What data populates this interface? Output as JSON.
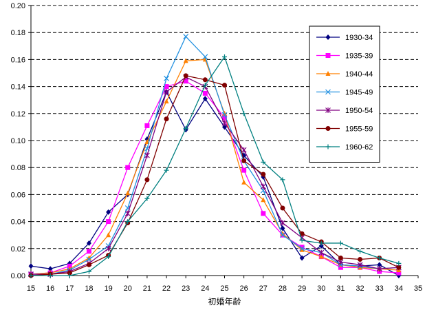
{
  "chart_data": {
    "type": "line",
    "title": "",
    "xlabel": "初婚年齢",
    "ylabel": "",
    "xlim": [
      15,
      35
    ],
    "ylim": [
      0,
      0.2
    ],
    "x_ticks": [
      "15",
      "16",
      "17",
      "18",
      "19",
      "20",
      "21",
      "22",
      "23",
      "24",
      "25",
      "26",
      "27",
      "28",
      "29",
      "30",
      "31",
      "32",
      "33",
      "34",
      "35"
    ],
    "y_ticks": [
      "0.00",
      "0.02",
      "0.04",
      "0.06",
      "0.08",
      "0.10",
      "0.12",
      "0.14",
      "0.16",
      "0.18",
      "0.20"
    ],
    "grid": "horizontal dashed",
    "legend_position": "right",
    "x": [
      15,
      16,
      17,
      18,
      19,
      20,
      21,
      22,
      23,
      24,
      25,
      26,
      27,
      28,
      29,
      30,
      31,
      32,
      33,
      34
    ],
    "series": [
      {
        "name": "1930-34",
        "color": "#000080",
        "marker": "diamond",
        "values": [
          0.007,
          0.005,
          0.009,
          0.024,
          0.047,
          0.06,
          0.101,
          0.136,
          0.108,
          0.131,
          0.11,
          0.089,
          0.073,
          0.035,
          0.013,
          0.022,
          0.008,
          0.007,
          0.008,
          0.0
        ]
      },
      {
        "name": "1935-39",
        "color": "#ff00ff",
        "marker": "square",
        "values": [
          0.001,
          0.002,
          0.007,
          0.018,
          0.04,
          0.08,
          0.111,
          0.14,
          0.144,
          0.135,
          0.117,
          0.078,
          0.046,
          0.03,
          0.021,
          0.014,
          0.006,
          0.006,
          0.003,
          0.002
        ]
      },
      {
        "name": "1940-44",
        "color": "#ff8000",
        "marker": "triangle",
        "values": [
          0.001,
          0.002,
          0.005,
          0.013,
          0.03,
          0.061,
          0.099,
          0.129,
          0.159,
          0.16,
          0.12,
          0.069,
          0.056,
          0.031,
          0.019,
          0.014,
          0.008,
          0.006,
          0.005,
          0.004
        ]
      },
      {
        "name": "1945-49",
        "color": "#2090e0",
        "marker": "x",
        "values": [
          0.001,
          0.001,
          0.004,
          0.012,
          0.022,
          0.05,
          0.094,
          0.146,
          0.177,
          0.162,
          0.119,
          0.085,
          0.063,
          0.03,
          0.02,
          0.017,
          0.008,
          0.007,
          0.005,
          0.006
        ]
      },
      {
        "name": "1950-54",
        "color": "#800080",
        "marker": "star",
        "values": [
          0.001,
          0.001,
          0.003,
          0.009,
          0.02,
          0.046,
          0.089,
          0.136,
          0.147,
          0.14,
          0.113,
          0.093,
          0.066,
          0.039,
          0.028,
          0.017,
          0.01,
          0.008,
          0.005,
          0.006
        ]
      },
      {
        "name": "1955-59",
        "color": "#800000",
        "marker": "circle",
        "values": [
          0.0,
          0.001,
          0.002,
          0.008,
          0.015,
          0.039,
          0.071,
          0.116,
          0.148,
          0.145,
          0.141,
          0.085,
          0.075,
          0.05,
          0.031,
          0.025,
          0.013,
          0.012,
          0.013,
          0.006
        ]
      },
      {
        "name": "1960-62",
        "color": "#008080",
        "marker": "plus",
        "values": [
          0.0,
          0.0,
          0.0,
          0.003,
          0.014,
          0.04,
          0.057,
          0.078,
          0.109,
          0.141,
          0.162,
          0.12,
          0.084,
          0.071,
          0.026,
          0.024,
          0.024,
          0.018,
          0.013,
          0.009
        ]
      }
    ]
  }
}
